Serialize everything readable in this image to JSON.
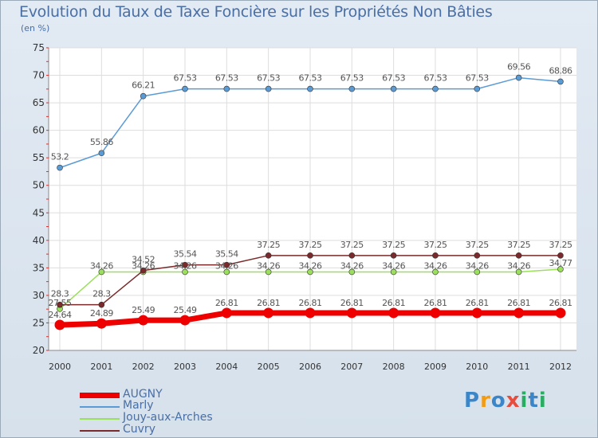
{
  "title": "Evolution du Taux de Taxe Foncière sur les Propriétés Non Bâties",
  "unit": "(en %)",
  "logo": {
    "parts": [
      "P",
      "r",
      "o",
      "x",
      "i",
      "t",
      "i"
    ],
    "colors": [
      "#3a86c8",
      "#f39c12",
      "#3a86c8",
      "#e74c3c",
      "#27ae60",
      "#3a86c8",
      "#27ae60"
    ]
  },
  "chart_data": {
    "type": "line",
    "x": [
      "2000",
      "2001",
      "2002",
      "2003",
      "2004",
      "2005",
      "2006",
      "2007",
      "2008",
      "2009",
      "2010",
      "2011",
      "2012"
    ],
    "ylim": [
      20,
      75
    ],
    "yticks": [
      "20",
      "25",
      "30",
      "35",
      "40",
      "45",
      "50",
      "55",
      "60",
      "65",
      "70",
      "75"
    ],
    "series": [
      {
        "name": "AUGNY",
        "color": "#ee0000",
        "width": 7,
        "marker": 6.5,
        "values": [
          24.64,
          24.89,
          25.49,
          25.49,
          26.81,
          26.81,
          26.81,
          26.81,
          26.81,
          26.81,
          26.81,
          26.81,
          26.81
        ],
        "labels": [
          "24.64",
          "24.89",
          "25.49",
          "25.49",
          "26.81",
          "26.81",
          "26.81",
          "26.81",
          "26.81",
          "26.81",
          "26.81",
          "26.81",
          "26.81"
        ]
      },
      {
        "name": "Marly",
        "color": "#5b9bd5",
        "width": 1.5,
        "marker": 3.5,
        "values": [
          53.2,
          55.86,
          66.21,
          67.53,
          67.53,
          67.53,
          67.53,
          67.53,
          67.53,
          67.53,
          67.53,
          69.56,
          68.86
        ],
        "labels": [
          "53.2",
          "55.86",
          "66.21",
          "67.53",
          "67.53",
          "67.53",
          "67.53",
          "67.53",
          "67.53",
          "67.53",
          "67.53",
          "69.56",
          "68.86"
        ]
      },
      {
        "name": "Jouy-aux-Arches",
        "color": "#9be05a",
        "width": 1.5,
        "marker": 3.5,
        "values": [
          27.55,
          34.26,
          34.26,
          34.26,
          34.26,
          34.26,
          34.26,
          34.26,
          34.26,
          34.26,
          34.26,
          34.26,
          34.77
        ],
        "labels": [
          "27.55",
          "34.26",
          "34.26",
          "34.26",
          "34.26",
          "34.26",
          "34.26",
          "34.26",
          "34.26",
          "34.26",
          "34.26",
          "34.26",
          "34.77"
        ]
      },
      {
        "name": "Cuvry",
        "color": "#7a2a2a",
        "width": 1.5,
        "marker": 3.5,
        "values": [
          28.3,
          28.3,
          34.52,
          35.54,
          35.54,
          37.25,
          37.25,
          37.25,
          37.25,
          37.25,
          37.25,
          37.25,
          37.25
        ],
        "labels": [
          "28.3",
          "28.3",
          "34.52",
          "35.54",
          "35.54",
          "37.25",
          "37.25",
          "37.25",
          "37.25",
          "37.25",
          "37.25",
          "37.25",
          "37.25"
        ]
      }
    ]
  }
}
